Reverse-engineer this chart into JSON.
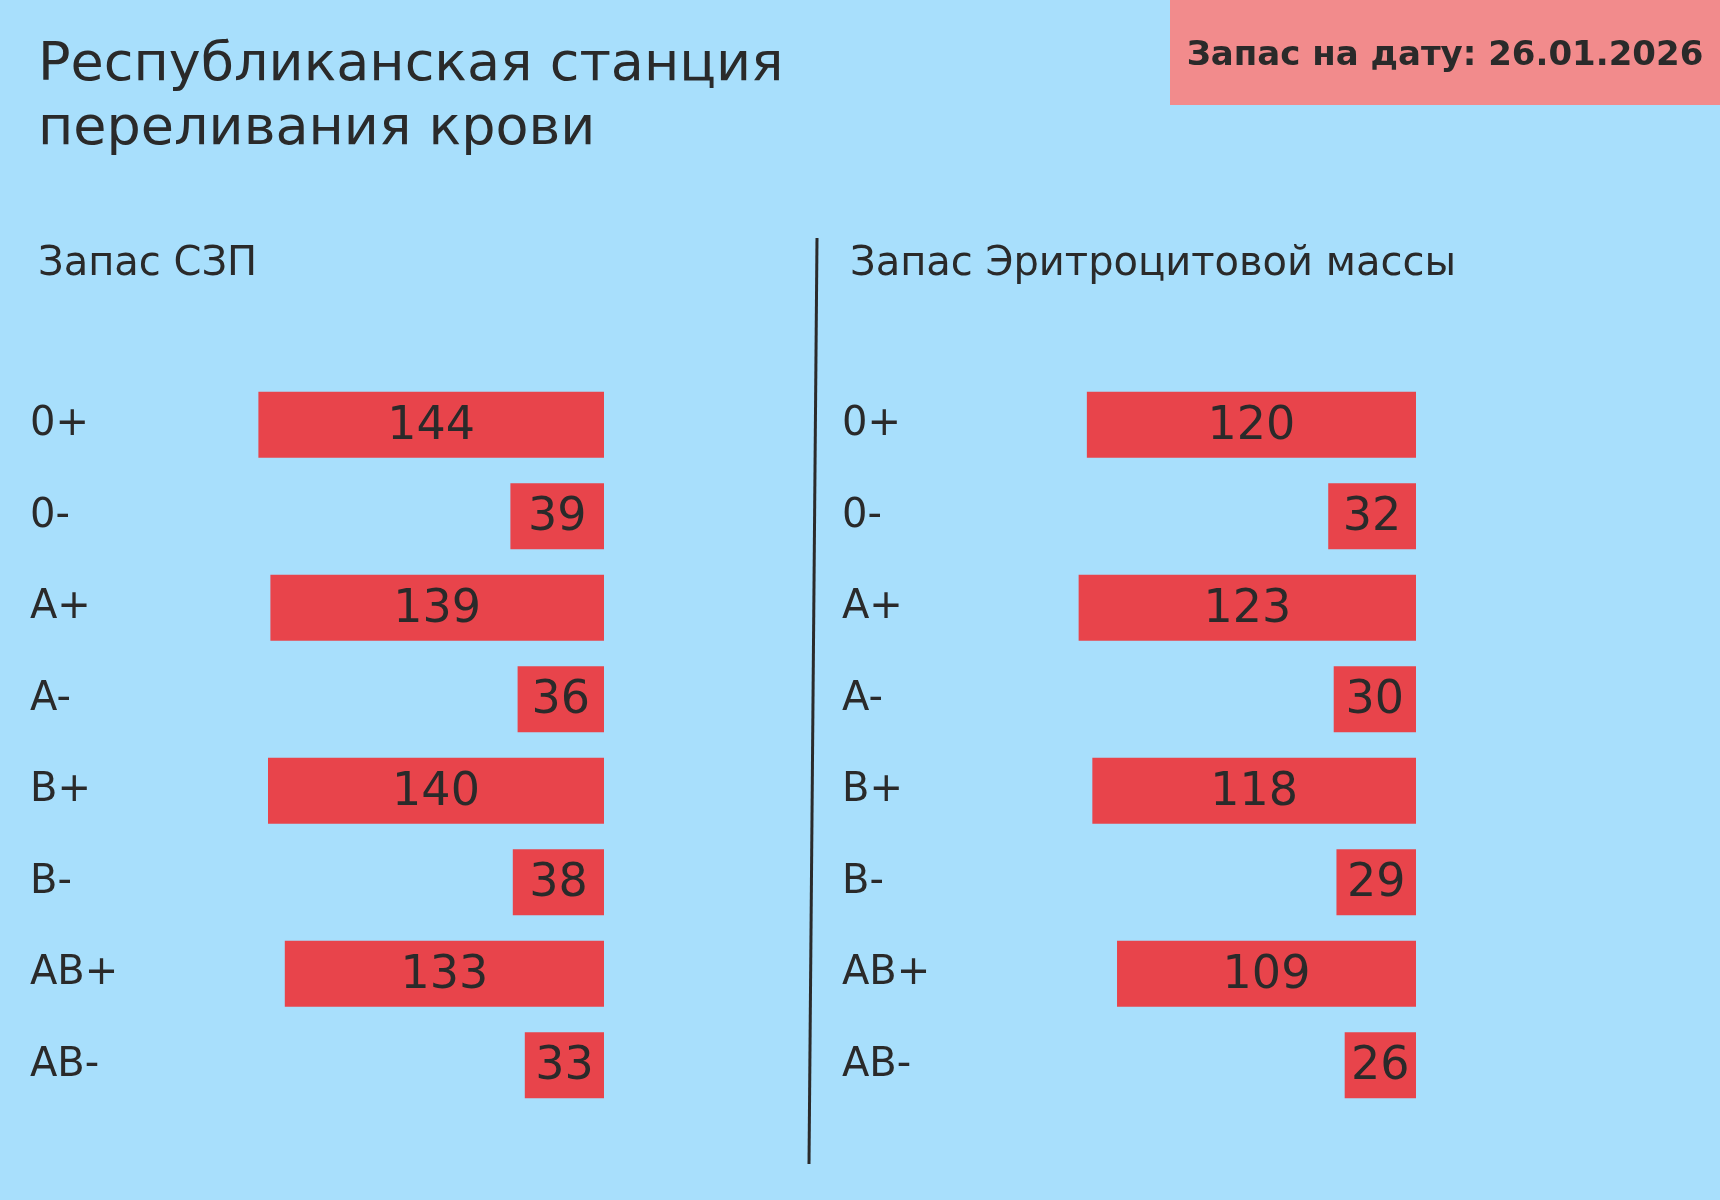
{
  "chart_data": [
    {
      "type": "bar",
      "orientation": "horizontal",
      "title": "Республиканская станция переливания крови",
      "subtitle": "Запас СЗП",
      "annotations": [
        "Запас на дату: 26.01.2026"
      ],
      "categories": [
        "0+",
        "0-",
        "A+",
        "A-",
        "B+",
        "B-",
        "AB+",
        "AB-"
      ],
      "values": [
        144,
        39,
        139,
        36,
        140,
        38,
        133,
        33
      ],
      "color": "#e8444b",
      "data_labels": true,
      "tick_labels": "y"
    },
    {
      "type": "bar",
      "orientation": "horizontal",
      "subtitle": "Запас Эритроцитовой массы",
      "categories": [
        "0+",
        "0-",
        "A+",
        "A-",
        "B+",
        "B-",
        "AB+",
        "AB-"
      ],
      "values": [
        120,
        32,
        123,
        30,
        118,
        29,
        109,
        26
      ],
      "color": "#e8444b",
      "data_labels": true,
      "tick_labels": "y"
    }
  ]
}
